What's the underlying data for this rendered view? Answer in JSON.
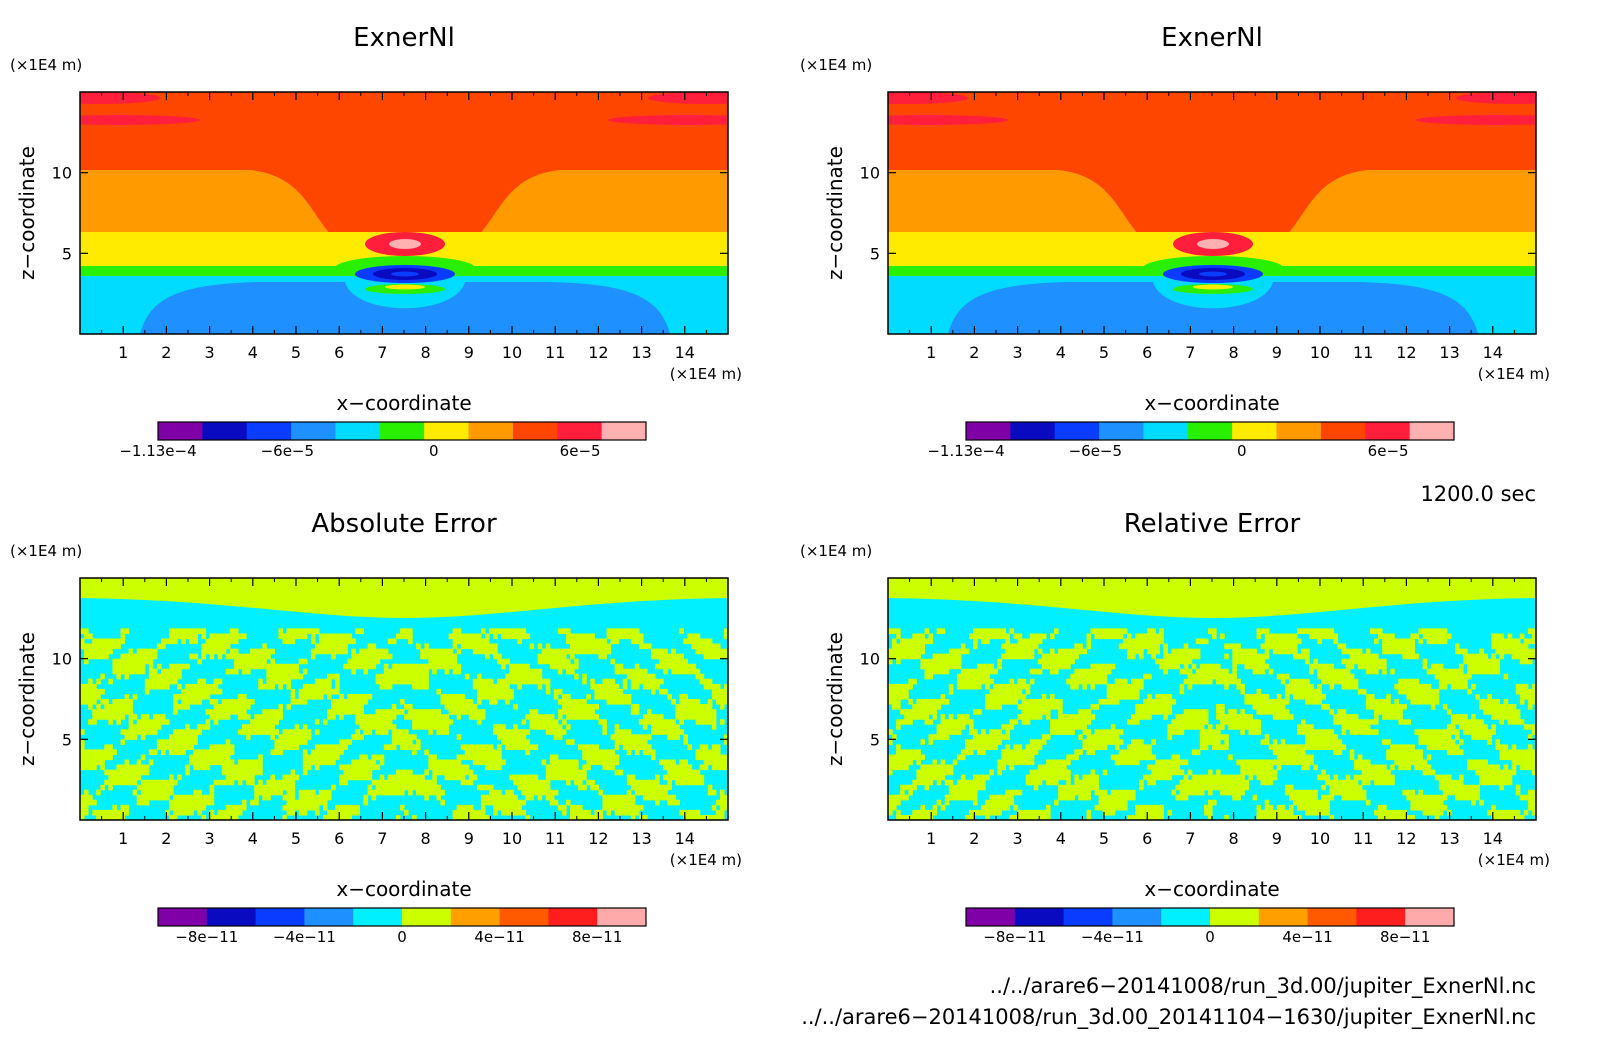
{
  "chart_data": [
    {
      "type": "heatmap",
      "title": "ExnerNl",
      "xlabel": "x−coordinate",
      "ylabel": "z−coordinate",
      "x_unit": "(×1E4 m)",
      "z_unit": "(×1E4 m)",
      "xlim": [
        0,
        15
      ],
      "ylim": [
        0,
        15
      ],
      "x_ticks": [
        1,
        2,
        3,
        4,
        5,
        6,
        7,
        8,
        9,
        10,
        11,
        12,
        13,
        14
      ],
      "y_ticks": [
        5,
        10
      ],
      "pattern": "field",
      "colorbar": {
        "colors": [
          "#8000a8",
          "#0a0ac0",
          "#0a3cff",
          "#1e90ff",
          "#00dcff",
          "#28f000",
          "#ffeb00",
          "#ff9b00",
          "#ff4600",
          "#ff1e3c",
          "#ffb0b0"
        ],
        "labels": [
          {
            "text": "−1.13e−4",
            "pos": 0.0
          },
          {
            "text": "−6e−5",
            "pos": 0.265
          },
          {
            "text": "0",
            "pos": 0.565
          },
          {
            "text": "6e−5",
            "pos": 0.865
          }
        ]
      }
    },
    {
      "type": "heatmap",
      "title": "ExnerNl",
      "xlabel": "x−coordinate",
      "ylabel": "z−coordinate",
      "x_unit": "(×1E4 m)",
      "z_unit": "(×1E4 m)",
      "xlim": [
        0,
        15
      ],
      "ylim": [
        0,
        15
      ],
      "x_ticks": [
        1,
        2,
        3,
        4,
        5,
        6,
        7,
        8,
        9,
        10,
        11,
        12,
        13,
        14
      ],
      "y_ticks": [
        5,
        10
      ],
      "pattern": "field",
      "colorbar": {
        "colors": [
          "#8000a8",
          "#0a0ac0",
          "#0a3cff",
          "#1e90ff",
          "#00dcff",
          "#28f000",
          "#ffeb00",
          "#ff9b00",
          "#ff4600",
          "#ff1e3c",
          "#ffb0b0"
        ],
        "labels": [
          {
            "text": "−1.13e−4",
            "pos": 0.0
          },
          {
            "text": "−6e−5",
            "pos": 0.265
          },
          {
            "text": "0",
            "pos": 0.565
          },
          {
            "text": "6e−5",
            "pos": 0.865
          }
        ]
      }
    },
    {
      "type": "heatmap",
      "title": "Absolute Error",
      "xlabel": "x−coordinate",
      "ylabel": "z−coordinate",
      "x_unit": "(×1E4 m)",
      "z_unit": "(×1E4 m)",
      "xlim": [
        0,
        15
      ],
      "ylim": [
        0,
        15
      ],
      "x_ticks": [
        1,
        2,
        3,
        4,
        5,
        6,
        7,
        8,
        9,
        10,
        11,
        12,
        13,
        14
      ],
      "y_ticks": [
        5,
        10
      ],
      "pattern": "noise",
      "colorbar": {
        "colors": [
          "#8000a8",
          "#0a0ac0",
          "#0a3cff",
          "#1e90ff",
          "#00f0ff",
          "#ccff00",
          "#ffa000",
          "#ff5a00",
          "#ff1e1e",
          "#ffaaaa"
        ],
        "labels": [
          {
            "text": "−8e−11",
            "pos": 0.1
          },
          {
            "text": "−4e−11",
            "pos": 0.3
          },
          {
            "text": "0",
            "pos": 0.5
          },
          {
            "text": "4e−11",
            "pos": 0.7
          },
          {
            "text": "8e−11",
            "pos": 0.9
          }
        ]
      }
    },
    {
      "type": "heatmap",
      "title": "Relative Error",
      "xlabel": "x−coordinate",
      "ylabel": "z−coordinate",
      "x_unit": "(×1E4 m)",
      "z_unit": "(×1E4 m)",
      "xlim": [
        0,
        15
      ],
      "ylim": [
        0,
        15
      ],
      "x_ticks": [
        1,
        2,
        3,
        4,
        5,
        6,
        7,
        8,
        9,
        10,
        11,
        12,
        13,
        14
      ],
      "y_ticks": [
        5,
        10
      ],
      "pattern": "noise",
      "colorbar": {
        "colors": [
          "#8000a8",
          "#0a0ac0",
          "#0a3cff",
          "#1e90ff",
          "#00f0ff",
          "#ccff00",
          "#ffa000",
          "#ff5a00",
          "#ff1e1e",
          "#ffaaaa"
        ],
        "labels": [
          {
            "text": "−8e−11",
            "pos": 0.1
          },
          {
            "text": "−4e−11",
            "pos": 0.3
          },
          {
            "text": "0",
            "pos": 0.5
          },
          {
            "text": "4e−11",
            "pos": 0.7
          },
          {
            "text": "8e−11",
            "pos": 0.9
          }
        ]
      }
    }
  ],
  "footer": {
    "time_label": "1200.0 sec",
    "file_1": "../../arare6−20141008/run_3d.00/jupiter_ExnerNl.nc",
    "file_2": "../../arare6−20141008/run_3d.00_20141104−1630/jupiter_ExnerNl.nc"
  }
}
